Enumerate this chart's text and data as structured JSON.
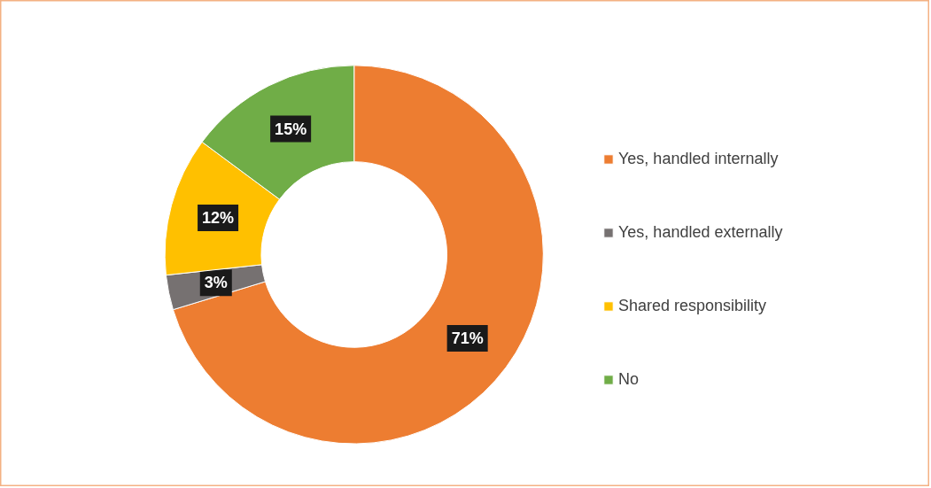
{
  "chart_data": {
    "type": "donut",
    "categories": [
      "Yes, handled internally",
      "Yes, handled externally",
      "Shared responsibility",
      "No"
    ],
    "values": [
      71,
      3,
      12,
      15
    ],
    "colors": [
      "#ed7d31",
      "#767171",
      "#ffc000",
      "#70ad47"
    ],
    "value_labels": [
      "71%",
      "3%",
      "12%",
      "15%"
    ],
    "legend": "right"
  }
}
